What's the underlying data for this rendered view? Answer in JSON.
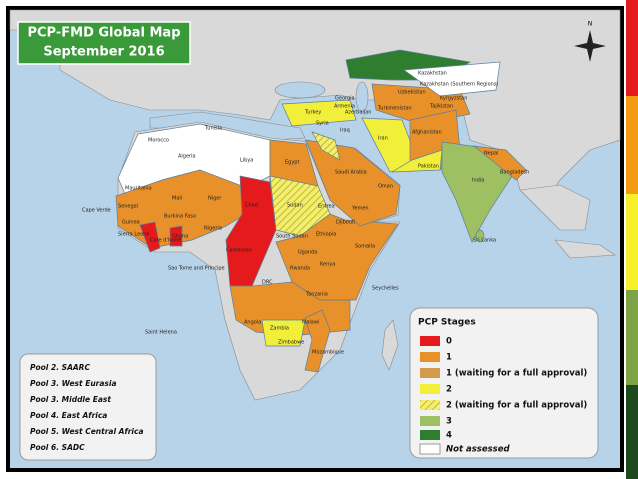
{
  "title": {
    "line1": "PCP-FMD Global Map",
    "line2": "September 2016"
  },
  "compass": "N",
  "legend": {
    "title": "PCP Stages",
    "items": [
      "0",
      "1",
      "1 (waiting for a full approval)",
      "2",
      "2 (waiting for a full approval)",
      "3",
      "4",
      "Not assessed"
    ]
  },
  "pools": [
    "Pool 2. SAARC",
    "Pool 3. West Eurasia",
    "Pool 3. Middle East",
    "Pool 4. East Africa",
    "Pool 5. West Central Africa",
    "Pool 6. SADC"
  ],
  "country_labels": [
    "Kazakhstan",
    "Kazakhstan (Southern Regions)",
    "Turkey",
    "Georgia",
    "Armenia",
    "Azerbaijan",
    "Turkmenistan",
    "Uzbekistan",
    "Kyrgyzstan",
    "Tajikistan",
    "Iran",
    "Iraq",
    "Syria",
    "Afghanistan",
    "Pakistan",
    "India",
    "Nepal",
    "Bangladesh",
    "Sri Lanka",
    "Tunisia",
    "Morocco",
    "Algeria",
    "Libya",
    "Egypt",
    "Mauritania",
    "Mali",
    "Niger",
    "Chad",
    "Sudan",
    "South Sudan",
    "Eritrea",
    "Djibouti",
    "Ethiopia",
    "Somalia",
    "Saudi Arabia",
    "Yemen",
    "Oman",
    "Cape Verde",
    "Senegal",
    "Guinea",
    "Sierra Leone",
    "Burkina Faso",
    "Ghana",
    "Cote d'Ivoire",
    "Nigeria",
    "Cameroon",
    "Sao Tome and Principe",
    "Uganda",
    "Kenya",
    "Rwanda",
    "DRC",
    "Tanzania",
    "Angola",
    "Zambia",
    "Malawi",
    "Zimbabwe",
    "Mozambique",
    "Seychelles",
    "Saint Helena"
  ]
}
